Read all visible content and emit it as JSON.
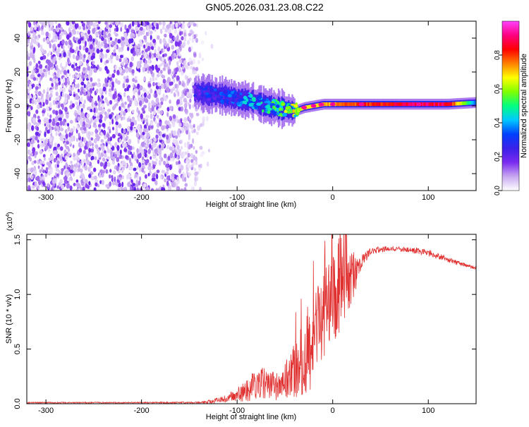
{
  "title": "GN05.2026.031.23.08.C22",
  "chart_data": [
    {
      "type": "heatmap",
      "name": "spectrogram",
      "xlabel": "Height of straight line (km)",
      "ylabel": "Frequency (Hz)",
      "xlim": [
        -320,
        150
      ],
      "ylim": [
        -50,
        50
      ],
      "xticks": [
        -300,
        -200,
        -100,
        0,
        100
      ],
      "yticks": [
        -40,
        -20,
        0,
        20,
        40
      ],
      "colorbar": {
        "label": "Normalized spectral amplitude",
        "range": [
          0,
          1
        ],
        "ticks": [
          "0.0",
          "0.2",
          "0.4",
          "0.6",
          "0.8"
        ],
        "tick_values": [
          0,
          0.2,
          0.4,
          0.6,
          0.8
        ],
        "colormap": [
          "#ffffff",
          "#c8a8f0",
          "#7a2af0",
          "#3a20e8",
          "#0040ff",
          "#00c8ff",
          "#00ff80",
          "#80ff00",
          "#ffff00",
          "#ff8000",
          "#ff0000",
          "#ff0080",
          "#ff40ff"
        ]
      },
      "noise_region_km": [
        -320,
        -125
      ],
      "signal_trace": {
        "x": [
          -145,
          -130,
          -115,
          -100,
          -85,
          -70,
          -60,
          -50,
          -40,
          -30,
          -20,
          -10,
          0,
          20,
          50,
          80,
          100,
          120,
          150
        ],
        "freq_hz": [
          8,
          7,
          6,
          4,
          3,
          0,
          -1,
          -2,
          -3,
          -1,
          0,
          1,
          1,
          1,
          1,
          1,
          1,
          1,
          2
        ],
        "amplitude": [
          0.25,
          0.3,
          0.3,
          0.35,
          0.4,
          0.45,
          0.5,
          0.55,
          0.6,
          0.65,
          0.7,
          0.72,
          0.75,
          0.8,
          0.85,
          0.9,
          0.9,
          0.9,
          0.35
        ]
      }
    },
    {
      "type": "line",
      "name": "snr",
      "xlabel": "Height of straight line (km)",
      "ylabel": "SNR (10 * v/v)",
      "scale_label": "(x10",
      "scale_exp": "4",
      "scale_close": ")",
      "xlim": [
        -320,
        150
      ],
      "ylim": [
        0,
        1.55
      ],
      "xticks": [
        -300,
        -200,
        -100,
        0,
        100
      ],
      "yticks": [
        "0.0",
        "0.5",
        "1.0",
        "1.5"
      ],
      "ytick_values": [
        0,
        0.5,
        1.0,
        1.5
      ],
      "color": "#e03030",
      "envelope": {
        "x": [
          -320,
          -200,
          -140,
          -125,
          -110,
          -100,
          -90,
          -80,
          -70,
          -60,
          -50,
          -40,
          -30,
          -20,
          -10,
          0,
          10,
          20,
          30,
          40,
          60,
          80,
          100,
          110,
          120,
          130,
          150
        ],
        "mean": [
          0.01,
          0.01,
          0.01,
          0.02,
          0.05,
          0.08,
          0.12,
          0.18,
          0.2,
          0.15,
          0.22,
          0.3,
          0.42,
          0.6,
          0.8,
          0.95,
          1.05,
          1.15,
          1.3,
          1.4,
          1.42,
          1.41,
          1.38,
          1.35,
          1.32,
          1.29,
          1.24
        ],
        "spread": [
          0.005,
          0.005,
          0.008,
          0.02,
          0.04,
          0.06,
          0.1,
          0.15,
          0.15,
          0.12,
          0.18,
          0.25,
          0.35,
          0.45,
          0.4,
          0.4,
          0.35,
          0.25,
          0.06,
          0.03,
          0.025,
          0.025,
          0.03,
          0.03,
          0.025,
          0.02,
          0.015
        ]
      }
    }
  ]
}
